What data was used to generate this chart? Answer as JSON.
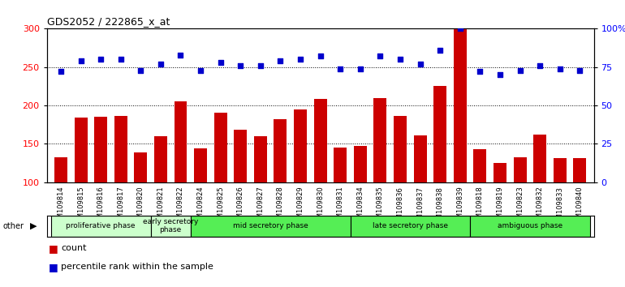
{
  "title": "GDS2052 / 222865_x_at",
  "samples": [
    "GSM109814",
    "GSM109815",
    "GSM109816",
    "GSM109817",
    "GSM109820",
    "GSM109821",
    "GSM109822",
    "GSM109824",
    "GSM109825",
    "GSM109826",
    "GSM109827",
    "GSM109828",
    "GSM109829",
    "GSM109830",
    "GSM109831",
    "GSM109834",
    "GSM109835",
    "GSM109836",
    "GSM109837",
    "GSM109838",
    "GSM109839",
    "GSM109818",
    "GSM109819",
    "GSM109823",
    "GSM109832",
    "GSM109833",
    "GSM109840"
  ],
  "count": [
    133,
    184,
    185,
    186,
    139,
    160,
    205,
    144,
    191,
    168,
    160,
    182,
    195,
    209,
    145,
    147,
    210,
    186,
    161,
    225,
    299,
    143,
    125,
    133,
    162,
    131,
    131
  ],
  "percentile": [
    72,
    79,
    80,
    80,
    73,
    77,
    83,
    73,
    78,
    76,
    76,
    79,
    80,
    82,
    74,
    74,
    82,
    80,
    77,
    86,
    100,
    72,
    70,
    73,
    76,
    74,
    73
  ],
  "phases": [
    {
      "label": "proliferative phase",
      "start": 0,
      "end": 5,
      "color": "#ccffcc"
    },
    {
      "label": "early secretory\nphase",
      "start": 5,
      "end": 7,
      "color": "#ccffcc"
    },
    {
      "label": "mid secretory phase",
      "start": 7,
      "end": 15,
      "color": "#55ee55"
    },
    {
      "label": "late secretory phase",
      "start": 15,
      "end": 21,
      "color": "#55ee55"
    },
    {
      "label": "ambiguous phase",
      "start": 21,
      "end": 27,
      "color": "#55ee55"
    }
  ],
  "ylim_left": [
    100,
    300
  ],
  "ylim_right": [
    0,
    100
  ],
  "bar_color": "#cc0000",
  "dot_color": "#0000cc",
  "background_color": "#ffffff",
  "yticks_left": [
    100,
    150,
    200,
    250,
    300
  ],
  "yticks_right": [
    0,
    25,
    50,
    75,
    100
  ],
  "hgrid_vals": [
    150,
    200,
    250
  ]
}
